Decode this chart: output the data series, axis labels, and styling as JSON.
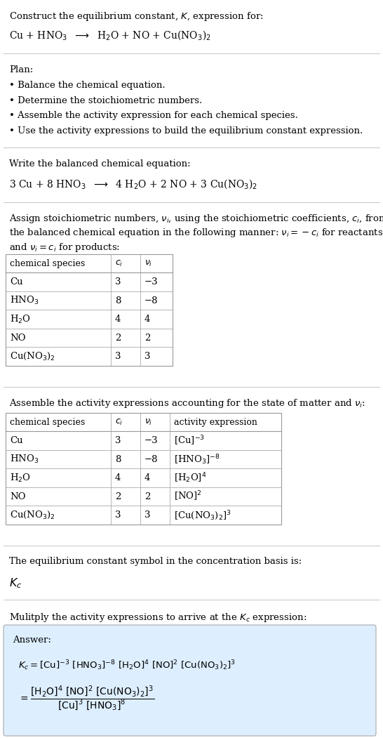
{
  "title_line1": "Construct the equilibrium constant, $K$, expression for:",
  "reaction_unbalanced": "Cu + HNO$_3$  $\\longrightarrow$  H$_2$O + NO + Cu(NO$_3$)$_2$",
  "plan_header": "Plan:",
  "plan_items": [
    "• Balance the chemical equation.",
    "• Determine the stoichiometric numbers.",
    "• Assemble the activity expression for each chemical species.",
    "• Use the activity expressions to build the equilibrium constant expression."
  ],
  "balanced_header": "Write the balanced chemical equation:",
  "reaction_balanced": "3 Cu + 8 HNO$_3$  $\\longrightarrow$  4 H$_2$O + 2 NO + 3 Cu(NO$_3$)$_2$",
  "stoich_intro1": "Assign stoichiometric numbers, $\\nu_i$, using the stoichiometric coefficients, $c_i$, from",
  "stoich_intro2": "the balanced chemical equation in the following manner: $\\nu_i = -c_i$ for reactants",
  "stoich_intro3": "and $\\nu_i = c_i$ for products:",
  "table1_headers": [
    "chemical species",
    "$c_i$",
    "$\\nu_i$"
  ],
  "table1_rows": [
    [
      "Cu",
      "3",
      "−3"
    ],
    [
      "HNO$_3$",
      "8",
      "−8"
    ],
    [
      "H$_2$O",
      "4",
      "4"
    ],
    [
      "NO",
      "2",
      "2"
    ],
    [
      "Cu(NO$_3$)$_2$",
      "3",
      "3"
    ]
  ],
  "activity_intro": "Assemble the activity expressions accounting for the state of matter and $\\nu_i$:",
  "table2_headers": [
    "chemical species",
    "$c_i$",
    "$\\nu_i$",
    "activity expression"
  ],
  "table2_rows": [
    [
      "Cu",
      "3",
      "−3",
      "[Cu]$^{-3}$"
    ],
    [
      "HNO$_3$",
      "8",
      "−8",
      "[HNO$_3$]$^{-8}$"
    ],
    [
      "H$_2$O",
      "4",
      "4",
      "[H$_2$O]$^4$"
    ],
    [
      "NO",
      "2",
      "2",
      "[NO]$^2$"
    ],
    [
      "Cu(NO$_3$)$_2$",
      "3",
      "3",
      "[Cu(NO$_3$)$_2$]$^3$"
    ]
  ],
  "kc_intro": "The equilibrium constant symbol in the concentration basis is:",
  "kc_symbol": "$K_c$",
  "multiply_intro": "Mulitply the activity expressions to arrive at the $K_c$ expression:",
  "answer_label": "Answer:",
  "bg_color": "#ffffff",
  "text_color": "#000000",
  "table_border_color": "#999999",
  "answer_box_color": "#ddeeff",
  "font_size": 9.5,
  "fig_width": 5.46,
  "fig_height": 10.51
}
